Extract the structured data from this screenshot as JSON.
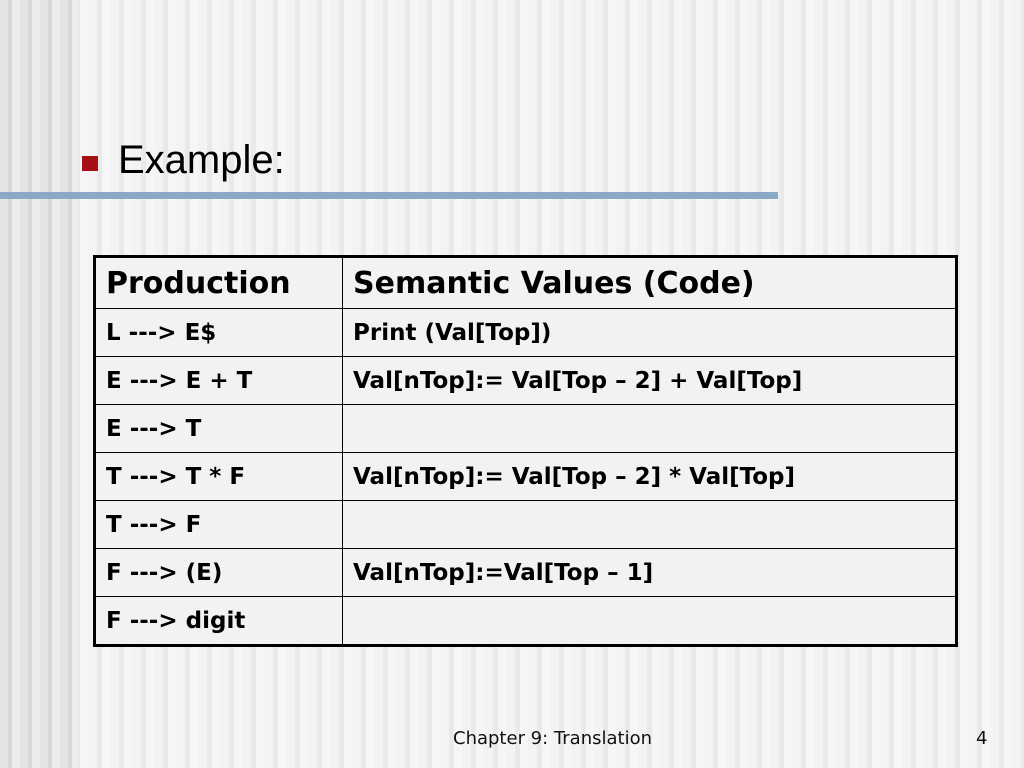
{
  "slide": {
    "title": "Example:",
    "bullet_color": "#a50f15",
    "rule_color": "#8aa9c6"
  },
  "table": {
    "headers": [
      "Production",
      "Semantic Values (Code)"
    ],
    "rows": [
      [
        "L ---> E$",
        "Print (Val[Top])"
      ],
      [
        "E ---> E + T",
        "Val[nTop]:= Val[Top – 2] + Val[Top]"
      ],
      [
        "E ---> T",
        ""
      ],
      [
        "T ---> T * F",
        "Val[nTop]:= Val[Top – 2] * Val[Top]"
      ],
      [
        "T ---> F",
        ""
      ],
      [
        "F ---> (E)",
        "Val[nTop]:=Val[Top – 1]"
      ],
      [
        "F ---> digit",
        ""
      ]
    ]
  },
  "footer": {
    "chapter": "Chapter 9: Translation",
    "page_number": "4"
  }
}
